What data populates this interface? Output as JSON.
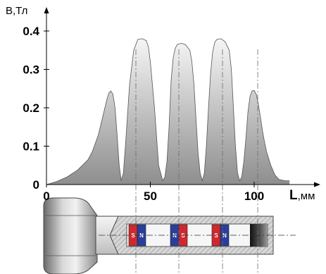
{
  "chart_data": {
    "type": "area",
    "y_axis": {
      "label": "В,Тл",
      "ticks": [
        "0.4",
        "0.3",
        "0.2",
        "0.1",
        "0"
      ],
      "tick_values": [
        0.4,
        0.3,
        0.2,
        0.1,
        0
      ],
      "range": [
        0,
        0.45
      ]
    },
    "x_axis": {
      "label_letter": "L",
      "label_unit": ",мм",
      "ticks": [
        "0",
        "50",
        "100"
      ],
      "tick_values": [
        0,
        50,
        100
      ],
      "range": [
        0,
        118
      ]
    },
    "series": [
      {
        "x": [
          0,
          5,
          10,
          15,
          20,
          22,
          25,
          27,
          29,
          30,
          31,
          32,
          33,
          34,
          35,
          36,
          37,
          38,
          40,
          42,
          44,
          46,
          48,
          49,
          50,
          52,
          54,
          56,
          57,
          58,
          59,
          60,
          61,
          62,
          63,
          65,
          67,
          69,
          70,
          71,
          72,
          73,
          74,
          75,
          76,
          77,
          78,
          79,
          80,
          81,
          82,
          84,
          86,
          88,
          89,
          90,
          91,
          92,
          93,
          94,
          95,
          96,
          97,
          98,
          99,
          100,
          101,
          102,
          103,
          104,
          105,
          106,
          108,
          110,
          112,
          115,
          117
        ],
        "y": [
          0.0,
          0.008,
          0.02,
          0.038,
          0.065,
          0.085,
          0.13,
          0.175,
          0.22,
          0.238,
          0.244,
          0.235,
          0.2,
          0.13,
          0.05,
          0.01,
          0.03,
          0.1,
          0.26,
          0.35,
          0.378,
          0.38,
          0.375,
          0.36,
          0.32,
          0.2,
          0.05,
          0.01,
          0.02,
          0.06,
          0.15,
          0.27,
          0.33,
          0.355,
          0.365,
          0.368,
          0.364,
          0.35,
          0.32,
          0.26,
          0.17,
          0.08,
          0.03,
          0.01,
          0.03,
          0.1,
          0.2,
          0.29,
          0.345,
          0.37,
          0.378,
          0.38,
          0.372,
          0.35,
          0.3,
          0.2,
          0.1,
          0.03,
          0.01,
          0.02,
          0.06,
          0.12,
          0.19,
          0.23,
          0.244,
          0.245,
          0.235,
          0.21,
          0.175,
          0.14,
          0.11,
          0.085,
          0.05,
          0.025,
          0.013,
          0.01,
          0.01
        ]
      }
    ],
    "grid": false,
    "legend": "none"
  },
  "magnets": [
    {
      "left": "S",
      "right": "N"
    },
    {
      "left": "N",
      "right": "S"
    },
    {
      "left": "S",
      "right": "N"
    }
  ],
  "colors": {
    "curve_top": "#fdfdfd",
    "curve_bottom": "#8e8e8e",
    "pole_red": "#d0282e",
    "pole_blue": "#2a3f9c",
    "bolt_metal": "#c8c8c8",
    "bolt_dark": "#3a3a3a"
  }
}
